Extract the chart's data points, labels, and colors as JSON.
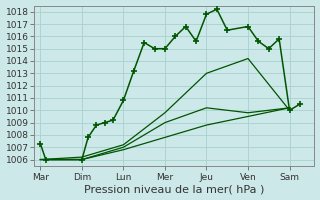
{
  "title": "",
  "xlabel": "Pression niveau de la mer( hPa )",
  "ylabel": "",
  "background_color": "#cde8e8",
  "grid_color": "#a8d0d0",
  "line_color": "#005500",
  "ylim": [
    1005.5,
    1018.5
  ],
  "yticks": [
    1006,
    1007,
    1008,
    1009,
    1010,
    1011,
    1012,
    1013,
    1014,
    1015,
    1016,
    1017,
    1018
  ],
  "xtick_labels": [
    "Mar",
    "Dim",
    "Lun",
    "Mer",
    "Jeu",
    "Ven",
    "Sam"
  ],
  "xtick_positions": [
    0,
    1,
    2,
    3,
    4,
    5,
    6
  ],
  "series": [
    {
      "x": [
        0,
        0.13,
        1.0,
        1.15,
        1.35,
        1.55,
        1.75,
        2.0,
        2.25,
        2.5,
        2.75,
        3.0,
        3.25,
        3.5,
        3.75,
        4.0,
        4.25,
        4.5,
        5.0,
        5.25,
        5.5,
        5.75,
        6.0,
        6.25
      ],
      "y": [
        1007.3,
        1006.0,
        1006.0,
        1007.8,
        1008.8,
        1009.0,
        1009.2,
        1010.8,
        1013.2,
        1015.5,
        1015.0,
        1015.0,
        1016.0,
        1016.8,
        1015.6,
        1017.8,
        1018.2,
        1016.5,
        1016.8,
        1015.6,
        1015.0,
        1015.8,
        1010.0,
        1010.5
      ],
      "has_marker": true
    },
    {
      "x": [
        0,
        1,
        2,
        3,
        4,
        5,
        6
      ],
      "y": [
        1006.0,
        1006.2,
        1007.2,
        1009.8,
        1013.0,
        1014.2,
        1010.0
      ],
      "has_marker": false
    },
    {
      "x": [
        0,
        1,
        2,
        3,
        4,
        5,
        6
      ],
      "y": [
        1006.0,
        1006.0,
        1007.0,
        1009.0,
        1010.2,
        1009.8,
        1010.2
      ],
      "has_marker": false
    },
    {
      "x": [
        0,
        1,
        2,
        3,
        4,
        5,
        6
      ],
      "y": [
        1006.0,
        1006.0,
        1006.8,
        1007.8,
        1008.8,
        1009.5,
        1010.2
      ],
      "has_marker": false
    }
  ],
  "marker": "+",
  "marker_size": 4,
  "marker_edge_width": 1.2,
  "font_color": "#333333",
  "font_size": 6.5,
  "xlabel_font_size": 8.0,
  "xlim": [
    -0.15,
    6.6
  ]
}
